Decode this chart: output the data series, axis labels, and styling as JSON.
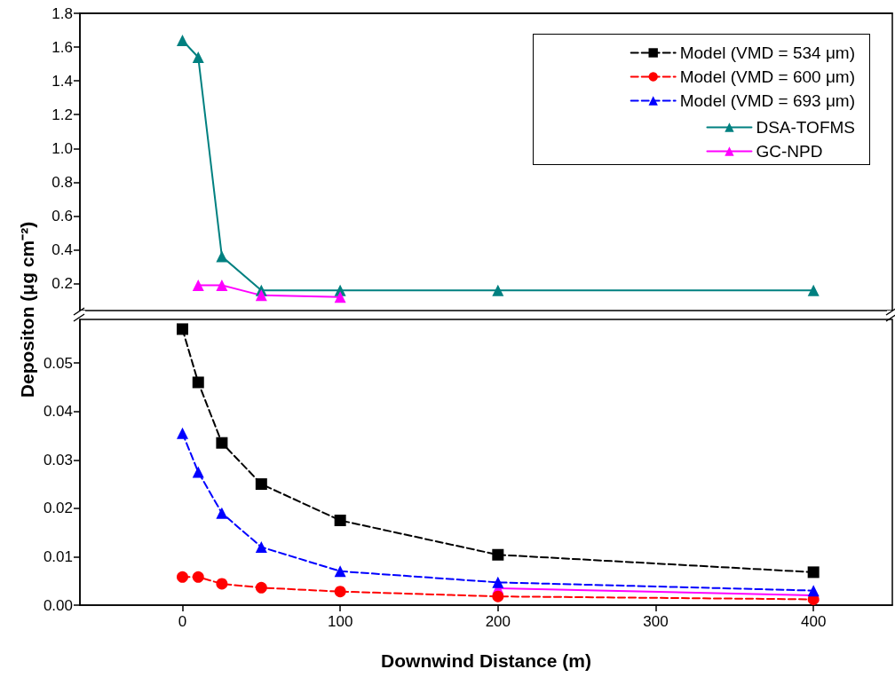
{
  "chart_data": [
    {
      "type": "line",
      "ylabel": "Depositon (μg cm⁻²)",
      "x": [
        0,
        10,
        25,
        50,
        100,
        200,
        400
      ],
      "xlim": [
        -65,
        450
      ],
      "xticks": [
        0,
        100,
        200,
        300,
        400
      ],
      "ylim": [
        0.04,
        1.8
      ],
      "yticks": [
        {
          "value": 0.2,
          "label": "0.2"
        },
        {
          "value": 0.4,
          "label": "0.4"
        },
        {
          "value": 0.6,
          "label": "0.6"
        },
        {
          "value": 0.8,
          "label": "0.8"
        },
        {
          "value": 1.0,
          "label": "1.0"
        },
        {
          "value": 1.2,
          "label": "1.2"
        },
        {
          "value": 1.4,
          "label": "1.4"
        },
        {
          "value": 1.6,
          "label": "1.6"
        },
        {
          "value": 1.8,
          "label": "1.8"
        }
      ],
      "tick_labels": "y",
      "legend": "top right",
      "series": [
        {
          "name": "DSA-TOFMS",
          "color": "#008080",
          "marker": "triangle",
          "line_style": "solid",
          "values": [
            1.64,
            1.54,
            0.36,
            0.16,
            0.16,
            0.16,
            0.16
          ]
        },
        {
          "name": "GC-NPD",
          "color": "#ff00ff",
          "marker": "triangle",
          "line_style": "solid",
          "x": [
            10,
            25,
            50,
            100
          ],
          "values": [
            0.19,
            0.19,
            0.13,
            0.12
          ]
        }
      ]
    },
    {
      "type": "line",
      "xlabel": "Downwind Distance (m)",
      "x": [
        0,
        10,
        25,
        50,
        100,
        200,
        400
      ],
      "xlim": [
        -65,
        450
      ],
      "xticks": [
        0,
        100,
        200,
        300,
        400
      ],
      "ylim": [
        0,
        0.059
      ],
      "yticks": [
        {
          "value": 0,
          "label": "0.00"
        },
        {
          "value": 0.01,
          "label": "0.01"
        },
        {
          "value": 0.02,
          "label": "0.02"
        },
        {
          "value": 0.03,
          "label": "0.03"
        },
        {
          "value": 0.04,
          "label": "0.04"
        },
        {
          "value": 0.05,
          "label": "0.05"
        }
      ],
      "legend": "top right",
      "series": [
        {
          "color": "#ff00ff",
          "marker": "triangle",
          "line_style": "solid",
          "x": [
            200,
            400
          ],
          "values": [
            0.0035,
            0.002
          ]
        },
        {
          "name": "Model (VMD = 534 μm)",
          "color": "#000000",
          "marker": "square",
          "line_style": "dashed",
          "values": [
            0.057,
            0.046,
            0.0335,
            0.025,
            0.0175,
            0.0104,
            0.0068
          ]
        },
        {
          "name": "Model (VMD = 600 μm)",
          "color": "#ff0000",
          "marker": "circle",
          "line_style": "dashed",
          "values": [
            0.0058,
            0.0058,
            0.0044,
            0.0036,
            0.0028,
            0.0018,
            0.0012
          ]
        },
        {
          "name": "Model (VMD = 693 μm)",
          "color": "#0000ff",
          "marker": "triangle",
          "line_style": "dashed",
          "values": [
            0.0355,
            0.0275,
            0.019,
            0.012,
            0.007,
            0.0047,
            0.003
          ]
        }
      ]
    }
  ]
}
